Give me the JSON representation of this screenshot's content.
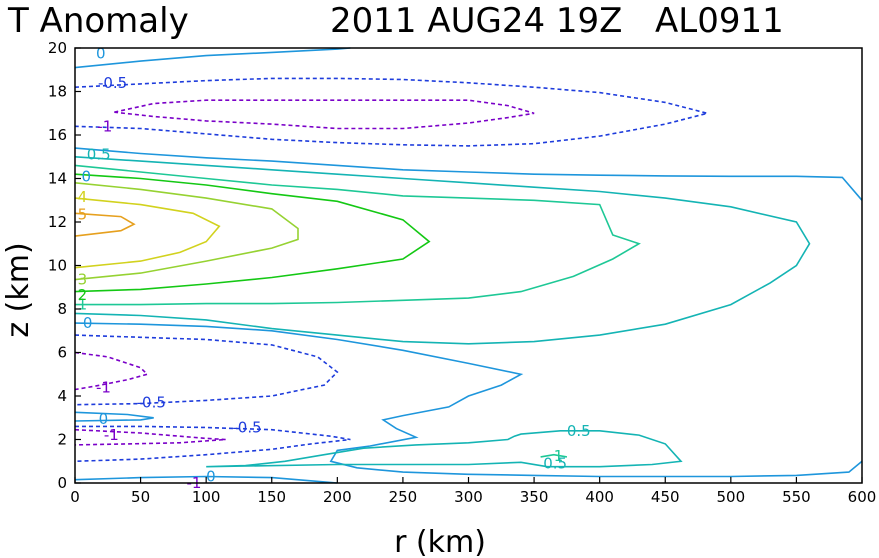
{
  "chart_data": {
    "type": "contour",
    "title": "T Anomaly",
    "datetime": "2011 AUG24 19Z",
    "storm_id": "AL0911",
    "xlabel": "r (km)",
    "ylabel": "z (km)",
    "xlim": [
      0,
      600
    ],
    "ylim": [
      0,
      20
    ],
    "x_ticks": [
      0,
      50,
      100,
      150,
      200,
      250,
      300,
      350,
      400,
      450,
      500,
      550,
      600
    ],
    "y_ticks": [
      0,
      2,
      4,
      6,
      8,
      10,
      12,
      14,
      16,
      18,
      20
    ],
    "colors": {
      "neg1": "#7a00c8",
      "neg05": "#1e3cdc",
      "zero": "#1e96dc",
      "pos05": "#14b4b4",
      "pos1": "#1ec896",
      "pos2": "#14c814",
      "pos3": "#96d232",
      "pos4": "#d2d21e",
      "pos5": "#e6a01e"
    },
    "contours": [
      {
        "level": -1,
        "color_key": "neg1",
        "dashed": true,
        "label": "-1",
        "label_at": [
          17,
          16.4
        ],
        "points": [
          [
            30,
            17.05
          ],
          [
            60,
            17.45
          ],
          [
            100,
            17.6
          ],
          [
            150,
            17.6
          ],
          [
            200,
            17.6
          ],
          [
            300,
            17.6
          ],
          [
            330,
            17.35
          ],
          [
            350,
            17.0
          ],
          [
            330,
            16.8
          ],
          [
            300,
            16.55
          ],
          [
            250,
            16.3
          ],
          [
            200,
            16.3
          ],
          [
            150,
            16.5
          ],
          [
            100,
            16.65
          ],
          [
            60,
            16.85
          ],
          [
            30,
            17.05
          ]
        ]
      },
      {
        "level": -0.5,
        "color_key": "neg05",
        "dashed": true,
        "label": "-0.5",
        "label_at": [
          17.5,
          18.4
        ],
        "points": [
          [
            0,
            18.2
          ],
          [
            50,
            18.35
          ],
          [
            100,
            18.5
          ],
          [
            150,
            18.6
          ],
          [
            200,
            18.6
          ],
          [
            250,
            18.55
          ],
          [
            300,
            18.4
          ],
          [
            350,
            18.2
          ],
          [
            400,
            17.95
          ],
          [
            450,
            17.5
          ],
          [
            482,
            17.0
          ],
          [
            450,
            16.5
          ],
          [
            400,
            15.95
          ],
          [
            350,
            15.6
          ],
          [
            300,
            15.5
          ],
          [
            250,
            15.55
          ],
          [
            200,
            15.65
          ],
          [
            150,
            15.8
          ],
          [
            100,
            16.05
          ],
          [
            50,
            16.3
          ],
          [
            0,
            16.4
          ]
        ]
      },
      {
        "level": 0,
        "color_key": "zero",
        "dashed": false,
        "label": "0",
        "label_at": [
          16,
          19.75
        ],
        "points": [
          [
            0,
            19.1
          ],
          [
            50,
            19.4
          ],
          [
            100,
            19.65
          ],
          [
            150,
            19.8
          ],
          [
            200,
            19.95
          ],
          [
            210,
            20.0
          ]
        ]
      },
      {
        "level": 0,
        "color_key": "zero",
        "dashed": false,
        "label": "0",
        "label_at": [
          5,
          14.1
        ],
        "points": [
          [
            0,
            15.4
          ],
          [
            50,
            15.15
          ],
          [
            100,
            14.95
          ],
          [
            150,
            14.8
          ],
          [
            200,
            14.6
          ],
          [
            250,
            14.4
          ],
          [
            300,
            14.3
          ],
          [
            350,
            14.2
          ],
          [
            400,
            14.15
          ],
          [
            450,
            14.12
          ],
          [
            500,
            14.1
          ],
          [
            550,
            14.1
          ],
          [
            585,
            14.05
          ],
          [
            600,
            13.0
          ]
        ]
      },
      {
        "level": 0.5,
        "color_key": "pos05",
        "dashed": false,
        "label": "0.5",
        "label_at": [
          9,
          15.1
        ],
        "points": [
          [
            0,
            15.0
          ],
          [
            50,
            14.8
          ],
          [
            100,
            14.6
          ],
          [
            150,
            14.4
          ],
          [
            200,
            14.2
          ],
          [
            250,
            14.0
          ],
          [
            300,
            13.8
          ],
          [
            350,
            13.6
          ],
          [
            400,
            13.4
          ],
          [
            450,
            13.1
          ],
          [
            500,
            12.7
          ],
          [
            550,
            12.0
          ],
          [
            560,
            11.0
          ],
          [
            550,
            10.0
          ],
          [
            530,
            9.2
          ],
          [
            500,
            8.2
          ],
          [
            450,
            7.3
          ],
          [
            400,
            6.8
          ],
          [
            350,
            6.5
          ],
          [
            300,
            6.4
          ],
          [
            250,
            6.5
          ],
          [
            200,
            6.8
          ],
          [
            150,
            7.1
          ],
          [
            100,
            7.5
          ],
          [
            50,
            7.7
          ],
          [
            0,
            7.8
          ]
        ]
      },
      {
        "level": 1,
        "color_key": "pos1",
        "dashed": false,
        "label": "1",
        "label_at": [
          2,
          8.2
        ],
        "points": [
          [
            0,
            14.6
          ],
          [
            50,
            14.3
          ],
          [
            100,
            14.0
          ],
          [
            150,
            13.7
          ],
          [
            200,
            13.5
          ],
          [
            250,
            13.2
          ],
          [
            300,
            13.1
          ],
          [
            350,
            13.0
          ],
          [
            400,
            12.8
          ],
          [
            410,
            11.4
          ],
          [
            430,
            11.0
          ],
          [
            410,
            10.3
          ],
          [
            380,
            9.5
          ],
          [
            340,
            8.8
          ],
          [
            300,
            8.5
          ],
          [
            250,
            8.4
          ],
          [
            200,
            8.3
          ],
          [
            150,
            8.25
          ],
          [
            100,
            8.25
          ],
          [
            50,
            8.2
          ],
          [
            0,
            8.2
          ]
        ]
      },
      {
        "level": 2,
        "color_key": "pos2",
        "dashed": false,
        "label": "2",
        "label_at": [
          2,
          8.65
        ],
        "points": [
          [
            0,
            14.2
          ],
          [
            50,
            14.0
          ],
          [
            100,
            13.7
          ],
          [
            150,
            13.3
          ],
          [
            200,
            12.95
          ],
          [
            250,
            12.1
          ],
          [
            270,
            11.1
          ],
          [
            250,
            10.3
          ],
          [
            200,
            9.85
          ],
          [
            150,
            9.45
          ],
          [
            100,
            9.15
          ],
          [
            50,
            8.9
          ],
          [
            0,
            8.8
          ]
        ]
      },
      {
        "level": 3,
        "color_key": "pos3",
        "dashed": false,
        "label": "3",
        "label_at": [
          2,
          9.35
        ],
        "points": [
          [
            0,
            13.8
          ],
          [
            50,
            13.5
          ],
          [
            100,
            13.1
          ],
          [
            150,
            12.6
          ],
          [
            170,
            11.7
          ],
          [
            170,
            11.2
          ],
          [
            150,
            10.8
          ],
          [
            100,
            10.2
          ],
          [
            50,
            9.65
          ],
          [
            0,
            9.35
          ]
        ]
      },
      {
        "level": 4,
        "color_key": "pos4",
        "dashed": false,
        "label": "4",
        "label_at": [
          2,
          13.15
        ],
        "points": [
          [
            0,
            13.1
          ],
          [
            50,
            12.8
          ],
          [
            90,
            12.4
          ],
          [
            110,
            11.8
          ],
          [
            100,
            11.1
          ],
          [
            80,
            10.6
          ],
          [
            50,
            10.2
          ],
          [
            0,
            9.9
          ]
        ]
      },
      {
        "level": 5,
        "color_key": "pos5",
        "dashed": false,
        "label": "5",
        "label_at": [
          2,
          12.35
        ],
        "points": [
          [
            0,
            12.4
          ],
          [
            35,
            12.25
          ],
          [
            45,
            11.9
          ],
          [
            35,
            11.6
          ],
          [
            0,
            11.35
          ]
        ]
      },
      {
        "level": 0,
        "color_key": "zero",
        "dashed": false,
        "label": "0",
        "label_at": [
          6,
          7.35
        ],
        "points": [
          [
            0,
            7.35
          ],
          [
            50,
            7.3
          ],
          [
            100,
            7.2
          ],
          [
            150,
            7.0
          ],
          [
            200,
            6.6
          ],
          [
            250,
            6.1
          ],
          [
            300,
            5.5
          ],
          [
            340,
            5.0
          ],
          [
            325,
            4.5
          ],
          [
            300,
            4.0
          ],
          [
            285,
            3.5
          ],
          [
            250,
            3.1
          ],
          [
            235,
            2.9
          ],
          [
            245,
            2.5
          ],
          [
            260,
            2.1
          ],
          [
            225,
            1.7
          ],
          [
            200,
            1.5
          ],
          [
            195,
            1.0
          ],
          [
            215,
            0.7
          ],
          [
            250,
            0.5
          ],
          [
            300,
            0.4
          ],
          [
            350,
            0.35
          ],
          [
            400,
            0.3
          ],
          [
            450,
            0.3
          ],
          [
            500,
            0.3
          ],
          [
            550,
            0.35
          ],
          [
            590,
            0.5
          ],
          [
            600,
            1.0
          ]
        ]
      },
      {
        "level": -1,
        "color_key": "neg1",
        "dashed": true,
        "label": "-1",
        "label_at": [
          16,
          4.4
        ],
        "points": [
          [
            0,
            6.0
          ],
          [
            25,
            5.8
          ],
          [
            50,
            5.3
          ],
          [
            55,
            5.0
          ],
          [
            40,
            4.75
          ],
          [
            15,
            4.45
          ],
          [
            0,
            4.3
          ]
        ]
      },
      {
        "level": -0.5,
        "color_key": "neg05",
        "dashed": true,
        "label": "-0.5",
        "label_at": [
          47,
          3.7
        ],
        "points": [
          [
            0,
            6.8
          ],
          [
            50,
            6.7
          ],
          [
            100,
            6.6
          ],
          [
            150,
            6.35
          ],
          [
            185,
            5.8
          ],
          [
            200,
            5.1
          ],
          [
            190,
            4.5
          ],
          [
            150,
            4.0
          ],
          [
            100,
            3.8
          ],
          [
            50,
            3.65
          ],
          [
            0,
            3.6
          ]
        ]
      },
      {
        "level": 0,
        "color_key": "zero",
        "dashed": false,
        "label": "0",
        "label_at": [
          18,
          2.95
        ],
        "points": [
          [
            0,
            3.25
          ],
          [
            40,
            3.15
          ],
          [
            60,
            3.0
          ],
          [
            50,
            2.9
          ],
          [
            0,
            2.85
          ]
        ]
      },
      {
        "level": -0.5,
        "color_key": "neg05",
        "dashed": true,
        "label": "-0.5",
        "label_at": [
          120,
          2.55
        ],
        "points": [
          [
            0,
            2.6
          ],
          [
            50,
            2.6
          ],
          [
            100,
            2.55
          ],
          [
            150,
            2.45
          ],
          [
            195,
            2.15
          ],
          [
            210,
            2.0
          ],
          [
            180,
            1.8
          ],
          [
            150,
            1.55
          ],
          [
            100,
            1.3
          ],
          [
            50,
            1.1
          ],
          [
            0,
            1.0
          ]
        ]
      },
      {
        "level": -1,
        "color_key": "neg1",
        "dashed": true,
        "label": "-1",
        "label_at": [
          22,
          2.2
        ],
        "points": [
          [
            0,
            2.45
          ],
          [
            50,
            2.3
          ],
          [
            100,
            2.05
          ],
          [
            115,
            2.0
          ],
          [
            80,
            1.85
          ],
          [
            40,
            1.8
          ],
          [
            0,
            1.75
          ]
        ]
      },
      {
        "level": 0.5,
        "color_key": "pos05",
        "dashed": false,
        "label": "0.5",
        "label_at": [
          375,
          2.4
        ],
        "points": [
          [
            100,
            0.75
          ],
          [
            130,
            0.8
          ],
          [
            160,
            1.0
          ],
          [
            190,
            1.3
          ],
          [
            220,
            1.6
          ],
          [
            260,
            1.75
          ],
          [
            300,
            1.85
          ],
          [
            330,
            2.0
          ],
          [
            335,
            2.15
          ],
          [
            340,
            2.25
          ],
          [
            370,
            2.4
          ],
          [
            400,
            2.4
          ],
          [
            430,
            2.2
          ],
          [
            450,
            1.8
          ],
          [
            462,
            1.0
          ],
          [
            440,
            0.85
          ],
          [
            400,
            0.75
          ],
          [
            360,
            0.75
          ],
          [
            340,
            0.95
          ],
          [
            300,
            0.85
          ],
          [
            250,
            0.85
          ],
          [
            200,
            0.85
          ],
          [
            100,
            0.75
          ]
        ]
      },
      {
        "level": 0,
        "color_key": "zero",
        "dashed": false,
        "label": "0",
        "label_at": [
          100,
          0.3
        ],
        "points": [
          [
            0,
            0.15
          ],
          [
            50,
            0.25
          ],
          [
            100,
            0.3
          ],
          [
            150,
            0.25
          ],
          [
            190,
            0.05
          ],
          [
            200,
            0.0
          ]
        ]
      },
      {
        "level": 1,
        "color_key": "pos1",
        "dashed": false,
        "label": "1",
        "label_at": [
          365,
          1.25
        ],
        "points": [
          [
            355,
            1.2
          ],
          [
            365,
            1.3
          ],
          [
            375,
            1.2
          ]
        ]
      }
    ],
    "extra_labels": [
      {
        "text": "-1",
        "color_key": "neg1",
        "at": [
          85,
          0
        ]
      },
      {
        "text": "0.5",
        "color_key": "pos05",
        "at": [
          357,
          0.9
        ]
      }
    ]
  }
}
